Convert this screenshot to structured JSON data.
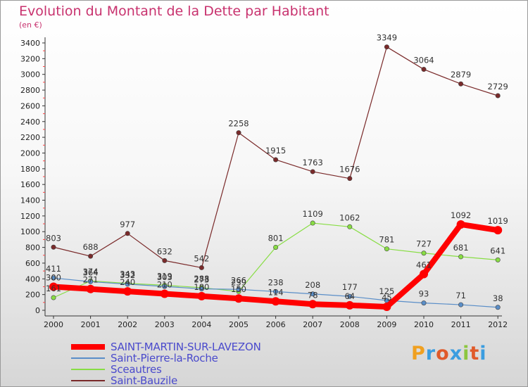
{
  "title": "Evolution du Montant de la Dette par Habitant",
  "subtitle": "(en €)",
  "logo": "Proxiti",
  "colors": {
    "title": "#c8326e",
    "legend_text": "#4a4acc",
    "axis": "#333333",
    "grid_tick": "#ff4444"
  },
  "chart_data": {
    "type": "line",
    "title": "Evolution du Montant de la Dette par Habitant",
    "subtitle": "(en €)",
    "xlabel": "",
    "ylabel": "",
    "x": [
      "2000",
      "2001",
      "2002",
      "2003",
      "2004",
      "2005",
      "2006",
      "2007",
      "2008",
      "2009",
      "2010",
      "2011",
      "2012"
    ],
    "ylim": [
      0,
      3400
    ],
    "yticks": [
      0,
      200,
      400,
      600,
      800,
      1000,
      1200,
      1400,
      1600,
      1800,
      2000,
      2200,
      2400,
      2600,
      2800,
      3000,
      3200,
      3400
    ],
    "legend_position": "bottom-left",
    "grid": false,
    "series": [
      {
        "name": "SAINT-MARTIN-SUR-LAVEZON",
        "color": "#ff0000",
        "line_width": 8,
        "values": [
          300,
          271,
          240,
          210,
          180,
          150,
          114,
          78,
          64,
          45,
          461,
          1092,
          1019
        ],
        "labels": [
          "300",
          "271",
          "240",
          "210",
          "180",
          "150",
          "114",
          "78",
          "64",
          "45",
          "461",
          "1092",
          "1019"
        ]
      },
      {
        "name": "Saint-Pierre-la-Roche",
        "color": "#5a8ec8",
        "line_width": 1.2,
        "values": [
          411,
          364,
          332,
          303,
          273,
          266,
          238,
          208,
          177,
          125,
          93,
          71,
          38
        ],
        "labels": [
          "411",
          "364",
          "332",
          "303",
          "273",
          "266",
          "238",
          "208",
          "177",
          "125",
          "93",
          "71",
          "38"
        ]
      },
      {
        "name": "Sceautres",
        "color": "#88dd44",
        "line_width": 1.2,
        "values": [
          161,
          374,
          343,
          319,
          288,
          239,
          null,
          1109,
          1062,
          781,
          727,
          681,
          641
        ],
        "values_full": [
          161,
          374,
          343,
          319,
          288,
          239,
          801,
          1109,
          1062,
          781,
          727,
          681,
          641
        ],
        "labels": [
          "161",
          "374",
          "343",
          "319",
          "288",
          "239",
          "801",
          "1109",
          "1062",
          "781",
          "727",
          "681",
          "641"
        ]
      },
      {
        "name": "Saint-Bauzile",
        "color": "#7a2a2a",
        "line_width": 1.2,
        "values": [
          803,
          688,
          977,
          632,
          542,
          2258,
          1915,
          1763,
          1676,
          3349,
          3064,
          2879,
          2729
        ],
        "labels": [
          "803",
          "688",
          "977",
          "632",
          "542",
          "2258",
          "1915",
          "1763",
          "1676",
          "3349",
          "3064",
          "2879",
          "2729"
        ]
      }
    ]
  }
}
